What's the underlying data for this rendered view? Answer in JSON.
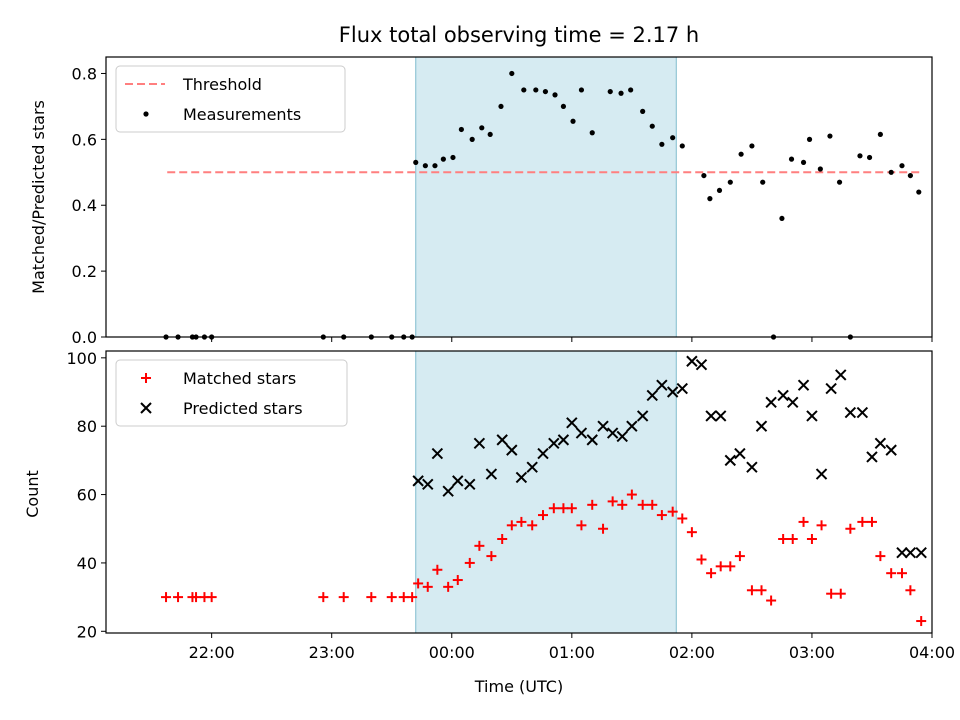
{
  "chart_data": [
    {
      "type": "scatter",
      "title": "Flux total observing time = 2.17 h",
      "xlabel": "",
      "ylabel": "Matched/Predicted stars",
      "ylim": [
        0,
        0.85
      ],
      "yticks": [
        "0.0",
        "0.2",
        "0.4",
        "0.6",
        "0.8"
      ],
      "xlim": [
        21.12,
        28.0
      ],
      "legend": {
        "placement": "top-left",
        "entries": [
          "Threshold",
          "Measurements"
        ]
      },
      "threshold": {
        "name": "Threshold",
        "value": 0.5,
        "x_start": 21.63,
        "x_end": 27.9,
        "color": "#ff7f7f"
      },
      "shaded_region": {
        "x_start": 23.7,
        "x_end": 25.87,
        "color": "#add8e6"
      },
      "series": [
        {
          "name": "Measurements",
          "color": "#000000",
          "x": [
            21.62,
            21.72,
            21.84,
            21.87,
            21.94,
            22.0,
            22.93,
            23.1,
            23.33,
            23.5,
            23.6,
            23.67,
            23.7,
            23.78,
            23.86,
            23.93,
            24.01,
            24.08,
            24.17,
            24.25,
            24.32,
            24.41,
            24.5,
            24.6,
            24.7,
            24.78,
            24.86,
            24.93,
            25.01,
            25.08,
            25.17,
            25.32,
            25.41,
            25.49,
            25.59,
            25.67,
            25.75,
            25.84,
            25.92,
            26.1,
            26.15,
            26.23,
            26.32,
            26.41,
            26.5,
            26.59,
            26.68,
            26.75,
            26.83,
            26.93,
            26.98,
            27.07,
            27.15,
            27.23,
            27.32,
            27.4,
            27.48,
            27.57,
            27.66,
            27.75,
            27.82,
            27.89
          ],
          "y": [
            0.0,
            0.0,
            0.0,
            0.0,
            0.0,
            0.0,
            0.0,
            0.0,
            0.0,
            0.0,
            0.0,
            0.0,
            0.53,
            0.52,
            0.52,
            0.54,
            0.545,
            0.63,
            0.6,
            0.635,
            0.615,
            0.7,
            0.8,
            0.75,
            0.75,
            0.745,
            0.735,
            0.7,
            0.655,
            0.75,
            0.62,
            0.745,
            0.74,
            0.75,
            0.685,
            0.64,
            0.585,
            0.605,
            0.58,
            0.49,
            0.42,
            0.445,
            0.47,
            0.555,
            0.58,
            0.47,
            0.0,
            0.36,
            0.54,
            0.53,
            0.6,
            0.51,
            0.61,
            0.47,
            0.0,
            0.55,
            0.545,
            0.615,
            0.5,
            0.52,
            0.49,
            0.44
          ]
        }
      ]
    },
    {
      "type": "scatter",
      "title": "",
      "xlabel": "Time (UTC)",
      "ylabel": "Count",
      "ylim": [
        19.5,
        102
      ],
      "yticks": [
        "20",
        "40",
        "60",
        "80",
        "100"
      ],
      "xlim": [
        21.12,
        28.0
      ],
      "xticks": [
        "22:00",
        "23:00",
        "00:00",
        "01:00",
        "02:00",
        "03:00",
        "04:00"
      ],
      "xtick_values": [
        22,
        23,
        24,
        25,
        26,
        27,
        28
      ],
      "legend": {
        "placement": "top-left",
        "entries": [
          "Matched stars",
          "Predicted stars"
        ]
      },
      "shaded_region": {
        "x_start": 23.7,
        "x_end": 25.87,
        "color": "#add8e6"
      },
      "series": [
        {
          "name": "Matched stars",
          "marker": "+",
          "color": "#ff0000",
          "x": [
            21.62,
            21.72,
            21.84,
            21.87,
            21.94,
            22.0,
            22.93,
            23.1,
            23.33,
            23.5,
            23.6,
            23.67,
            23.72,
            23.8,
            23.88,
            23.97,
            24.05,
            24.15,
            24.23,
            24.33,
            24.42,
            24.5,
            24.58,
            24.67,
            24.76,
            24.85,
            24.93,
            25.0,
            25.08,
            25.17,
            25.26,
            25.34,
            25.42,
            25.5,
            25.59,
            25.67,
            25.75,
            25.84,
            25.92,
            26.0,
            26.08,
            26.16,
            26.24,
            26.32,
            26.4,
            26.5,
            26.58,
            26.66,
            26.76,
            26.84,
            26.93,
            27.0,
            27.08,
            27.16,
            27.24,
            27.32,
            27.42,
            27.5,
            27.57,
            27.66,
            27.75,
            27.82,
            27.91
          ],
          "y": [
            30,
            30,
            30,
            30,
            30,
            30,
            30,
            30,
            30,
            30,
            30,
            30,
            34,
            33,
            38,
            33,
            35,
            40,
            45,
            42,
            47,
            51,
            52,
            51,
            54,
            56,
            56,
            56,
            51,
            57,
            50,
            58,
            57,
            60,
            57,
            57,
            54,
            55,
            53,
            49,
            41,
            37,
            39,
            39,
            42,
            32,
            32,
            29,
            47,
            47,
            52,
            47,
            51,
            31,
            31,
            50,
            52,
            52,
            42,
            37,
            37,
            32,
            23
          ]
        },
        {
          "name": "Predicted stars",
          "marker": "x",
          "color": "#000000",
          "x": [
            23.72,
            23.8,
            23.88,
            23.97,
            24.05,
            24.15,
            24.23,
            24.33,
            24.42,
            24.5,
            24.58,
            24.67,
            24.76,
            24.85,
            24.93,
            25.0,
            25.08,
            25.17,
            25.26,
            25.34,
            25.42,
            25.5,
            25.59,
            25.67,
            25.75,
            25.84,
            25.92,
            26.0,
            26.08,
            26.16,
            26.24,
            26.32,
            26.4,
            26.5,
            26.58,
            26.66,
            26.76,
            26.84,
            26.93,
            27.0,
            27.08,
            27.16,
            27.24,
            27.32,
            27.42,
            27.5,
            27.57,
            27.66,
            27.75,
            27.82,
            27.91
          ],
          "y": [
            64,
            63,
            72,
            61,
            64,
            63,
            75,
            66,
            76,
            73,
            65,
            68,
            72,
            75,
            76,
            81,
            78,
            76,
            80,
            78,
            77,
            80,
            83,
            89,
            92,
            90,
            91,
            99,
            98,
            83,
            83,
            70,
            72,
            68,
            80,
            87,
            89,
            87,
            92,
            83,
            66,
            91,
            95,
            84,
            84,
            71,
            75,
            73,
            43,
            43,
            43
          ]
        }
      ]
    }
  ]
}
